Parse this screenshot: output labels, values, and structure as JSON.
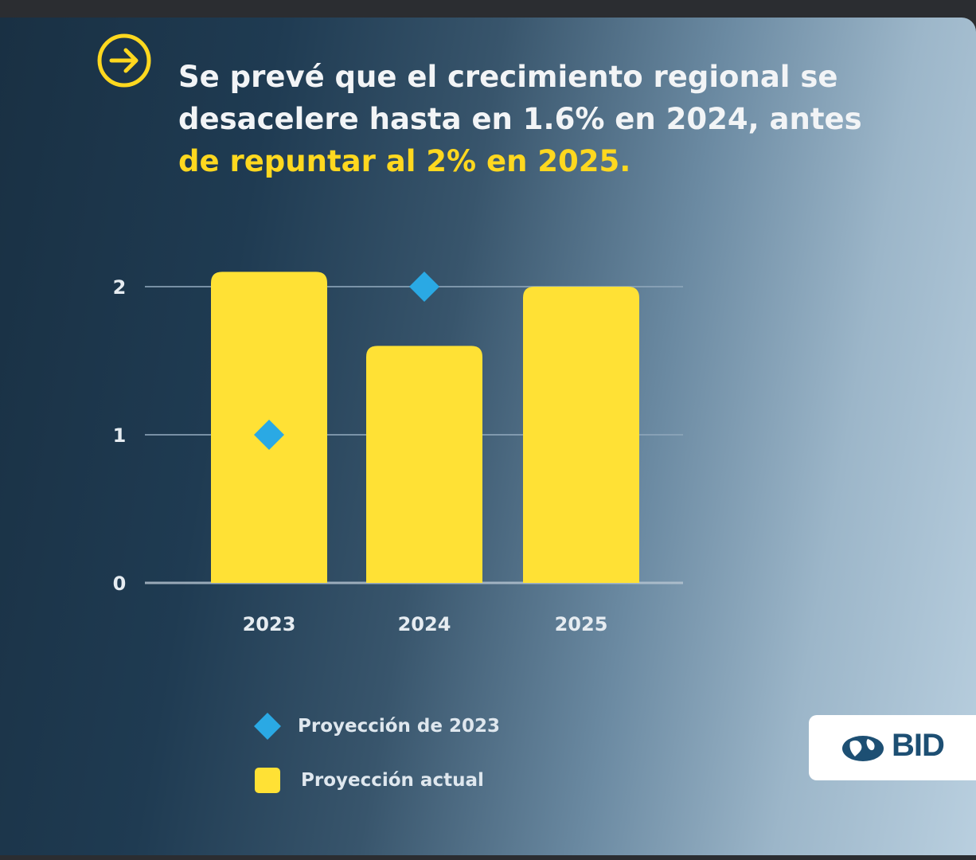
{
  "headline": {
    "line1": "Se prevé que el crecimiento regional se",
    "line2": "desacelere hasta en 1.6% en 2024, antes",
    "line3_highlight": "de repuntar al 2% en 2025."
  },
  "logo": {
    "text": "BID"
  },
  "colors": {
    "accent_yellow": "#ffd81f",
    "bar_yellow": "#ffe135",
    "marker_blue": "#2aa9e4",
    "headline_text": "#f2f4f6"
  },
  "chart_data": {
    "type": "bar",
    "categories": [
      "2023",
      "2024",
      "2025"
    ],
    "series": [
      {
        "name": "Proyección actual",
        "kind": "bar",
        "values": [
          2.1,
          1.6,
          2.0
        ]
      },
      {
        "name": "Proyección de 2023",
        "kind": "diamond-marker",
        "values": [
          1.0,
          2.0,
          null
        ]
      }
    ],
    "yticks": [
      "0",
      "1",
      "2"
    ],
    "ylim": [
      0,
      2
    ],
    "grid": true,
    "legend_position": "bottom-left",
    "title": "",
    "xlabel": "",
    "ylabel": ""
  }
}
